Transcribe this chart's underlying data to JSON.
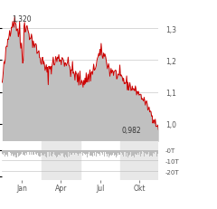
{
  "price_max_label": "1,320",
  "price_min_label": "0,982",
  "yticks": [
    1.0,
    1.1,
    1.2,
    1.3
  ],
  "ytick_labels": [
    "1,0",
    "1,1",
    "1,2",
    "1,3"
  ],
  "xtick_labels": [
    "Jan",
    "Apr",
    "Jul",
    "Okt"
  ],
  "ylim_main": [
    0.945,
    1.365
  ],
  "line_color": "#cc0000",
  "fill_color": "#c0c0c0",
  "background_color": "#ffffff",
  "axis_label_color": "#555555",
  "volume_bar_color_high": "#cc0000",
  "volume_bar_color_low": "#bbbbbb",
  "volume_band_color": "#e8e8e8",
  "volume_ytick_labels": [
    "-20T",
    "-10T",
    "-0T"
  ],
  "volume_ylim": [
    -28000,
    8000
  ],
  "volume_ytick_vals": [
    -20000,
    -10000,
    0
  ],
  "gridline_color": "#bbbbbb",
  "gridline_lw": 0.4,
  "annotation_color": "#333333",
  "label_fontsize": 5.5,
  "volume_label_fontsize": 5.0,
  "line_lw": 0.7
}
